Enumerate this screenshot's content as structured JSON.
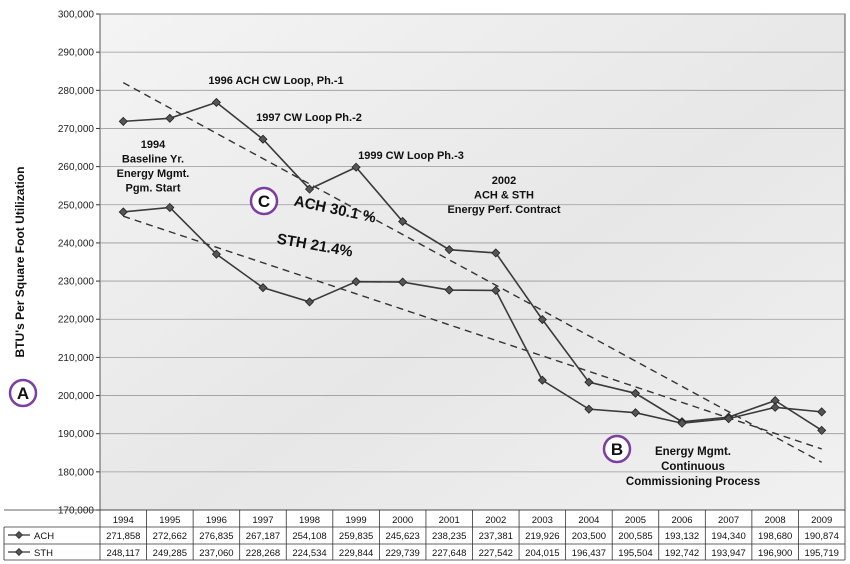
{
  "chart_data": {
    "type": "line",
    "ylabel": "BTU's Per Square Foot Utilization",
    "ylim": [
      170000,
      300000
    ],
    "ytick_labels": [
      "300,000",
      "290,000",
      "280,000",
      "270,000",
      "260,000",
      "250,000",
      "240,000",
      "230,000",
      "220,000",
      "210,000",
      "200,000",
      "190,000",
      "180,000",
      "170,000"
    ],
    "categories": [
      "1994",
      "1995",
      "1996",
      "1997",
      "1998",
      "1999",
      "2000",
      "2001",
      "2002",
      "2003",
      "2004",
      "2005",
      "2006",
      "2007",
      "2008",
      "2009"
    ],
    "series": [
      {
        "name": "ACH",
        "values": [
          271858,
          272662,
          276835,
          267187,
          254108,
          259835,
          245623,
          238235,
          237381,
          219926,
          203500,
          200585,
          193132,
          194340,
          198680,
          190874
        ],
        "labels": [
          "271,858",
          "272,662",
          "276,835",
          "267,187",
          "254,108",
          "259,835",
          "245,623",
          "238,235",
          "237,381",
          "219,926",
          "203,500",
          "200,585",
          "193,132",
          "194,340",
          "198,680",
          "190,874"
        ]
      },
      {
        "name": "STH",
        "values": [
          248117,
          249285,
          237060,
          228268,
          224534,
          229844,
          229739,
          227648,
          227542,
          204015,
          196437,
          195504,
          192742,
          193947,
          196900,
          195719
        ],
        "labels": [
          "248,117",
          "249,285",
          "237,060",
          "228,268",
          "224,534",
          "229,844",
          "229,739",
          "227,648",
          "227,542",
          "204,015",
          "196,437",
          "195,504",
          "192,742",
          "193,947",
          "196,900",
          "195,719"
        ]
      }
    ],
    "trendlines": [
      {
        "series": "ACH",
        "from": {
          "x": "1994",
          "y": 282000
        },
        "to": {
          "x": "2009",
          "y": 182500
        }
      },
      {
        "series": "STH",
        "from": {
          "x": "1994",
          "y": 247000
        },
        "to": {
          "x": "2009",
          "y": 186000
        }
      }
    ],
    "annotations": [
      {
        "lines": [
          "1996 ACH CW Loop, Ph.-1"
        ]
      },
      {
        "lines": [
          "1997 CW Loop Ph.-2"
        ]
      },
      {
        "lines": [
          "1999 CW Loop Ph.-3"
        ]
      },
      {
        "lines": [
          "1994",
          "Baseline Yr.",
          "Energy Mgmt.",
          "Pgm. Start"
        ]
      },
      {
        "lines": [
          "2002",
          "ACH & STH",
          "Energy Perf. Contract"
        ]
      },
      {
        "lines": [
          "ACH 30.1 %"
        ]
      },
      {
        "lines": [
          "STH 21.4%"
        ]
      },
      {
        "lines": [
          "Energy Mgmt.",
          "Continuous",
          "Commissioning Process"
        ]
      }
    ],
    "markers": [
      "A",
      "B",
      "C"
    ],
    "grid": true,
    "legend": "data-table-bottom"
  },
  "colors": {
    "plot_bg": "#e7e7e7",
    "series_line": "#3a3a3a",
    "trend_line": "#333333",
    "marker_circle": "#7b3fa0",
    "grid": "#9a9a9a"
  }
}
